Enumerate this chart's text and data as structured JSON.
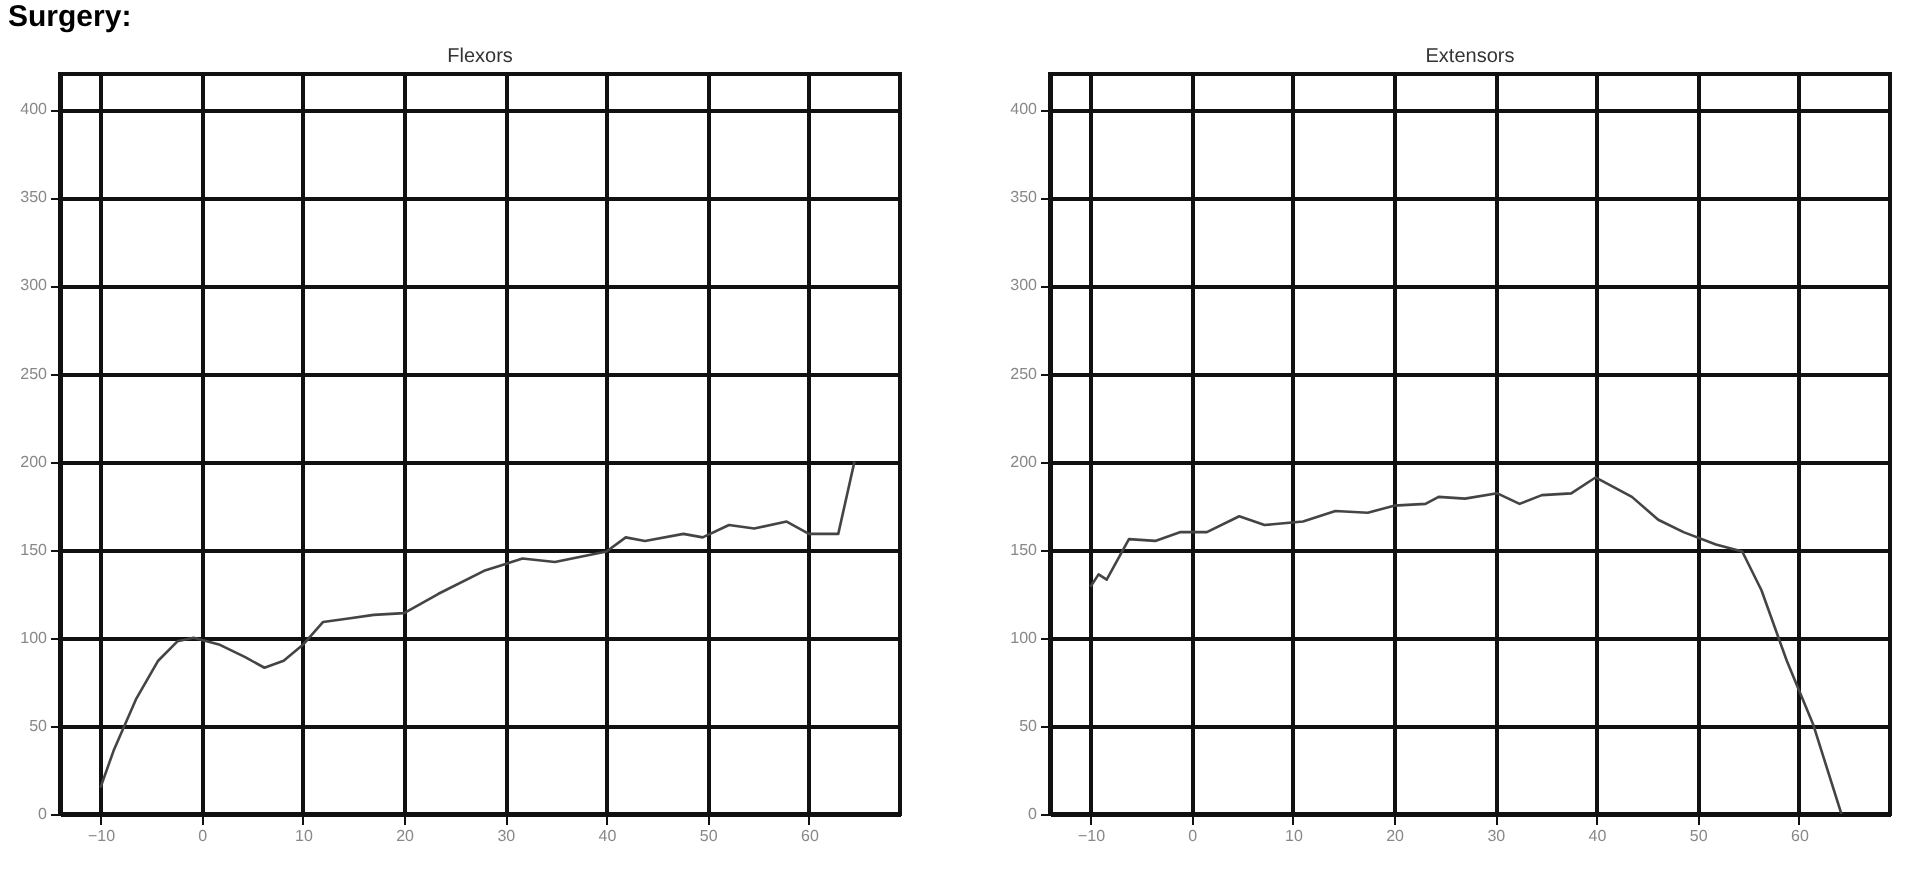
{
  "chart_data": [
    {
      "type": "line",
      "title": "Flexors",
      "annotations": [
        "Surgery:"
      ],
      "grid": true,
      "xlim": [
        -14,
        69
      ],
      "xticks": [
        -10,
        0,
        10,
        20,
        30,
        40,
        50,
        60
      ],
      "ylim": [
        0,
        420
      ],
      "yticks": [
        0,
        50,
        100,
        150,
        200,
        250,
        300,
        350,
        400
      ],
      "series": [
        {
          "color": "#444444",
          "x": [
            -10,
            -8.7,
            -6.5,
            -4.3,
            -2.4,
            -0.8,
            1.8,
            4.3,
            6.2,
            8.1,
            10,
            12,
            14.5,
            17,
            20,
            23.4,
            27.9,
            31.7,
            34.9,
            40,
            41.9,
            43.8,
            47.6,
            49.5,
            52.1,
            54.6,
            57.8,
            60,
            62.9,
            64.5
          ],
          "values": [
            15,
            36,
            65,
            87,
            98,
            100,
            96,
            89,
            83,
            87,
            96,
            109,
            111,
            113,
            114,
            125,
            138,
            145,
            143,
            149,
            157,
            155,
            159,
            157,
            164,
            162,
            166,
            159,
            159,
            200
          ]
        }
      ]
    },
    {
      "type": "line",
      "title": "Extensors",
      "grid": true,
      "xlim": [
        -14,
        69
      ],
      "xticks": [
        -10,
        0,
        10,
        20,
        30,
        40,
        50,
        60
      ],
      "ylim": [
        0,
        420
      ],
      "yticks": [
        0,
        50,
        100,
        150,
        200,
        250,
        300,
        350,
        400
      ],
      "series": [
        {
          "color": "#444444",
          "x": [
            -10,
            -9.2,
            -8.4,
            -6.2,
            -3.6,
            -1.1,
            1.5,
            4.7,
            7.2,
            11,
            14.2,
            17.4,
            20,
            23.1,
            24.4,
            27,
            30.2,
            32.4,
            34.6,
            37.5,
            39.9,
            43.5,
            46.1,
            48.6,
            51.8,
            54.4,
            56.3,
            58.8,
            61.4,
            64.2
          ],
          "values": [
            129,
            136,
            133,
            156,
            155,
            160,
            160,
            169,
            164,
            166,
            172,
            171,
            175,
            176,
            180,
            179,
            182,
            176,
            181,
            182,
            191,
            180,
            167,
            160,
            153,
            149,
            127,
            87,
            51,
            0
          ]
        }
      ]
    }
  ]
}
